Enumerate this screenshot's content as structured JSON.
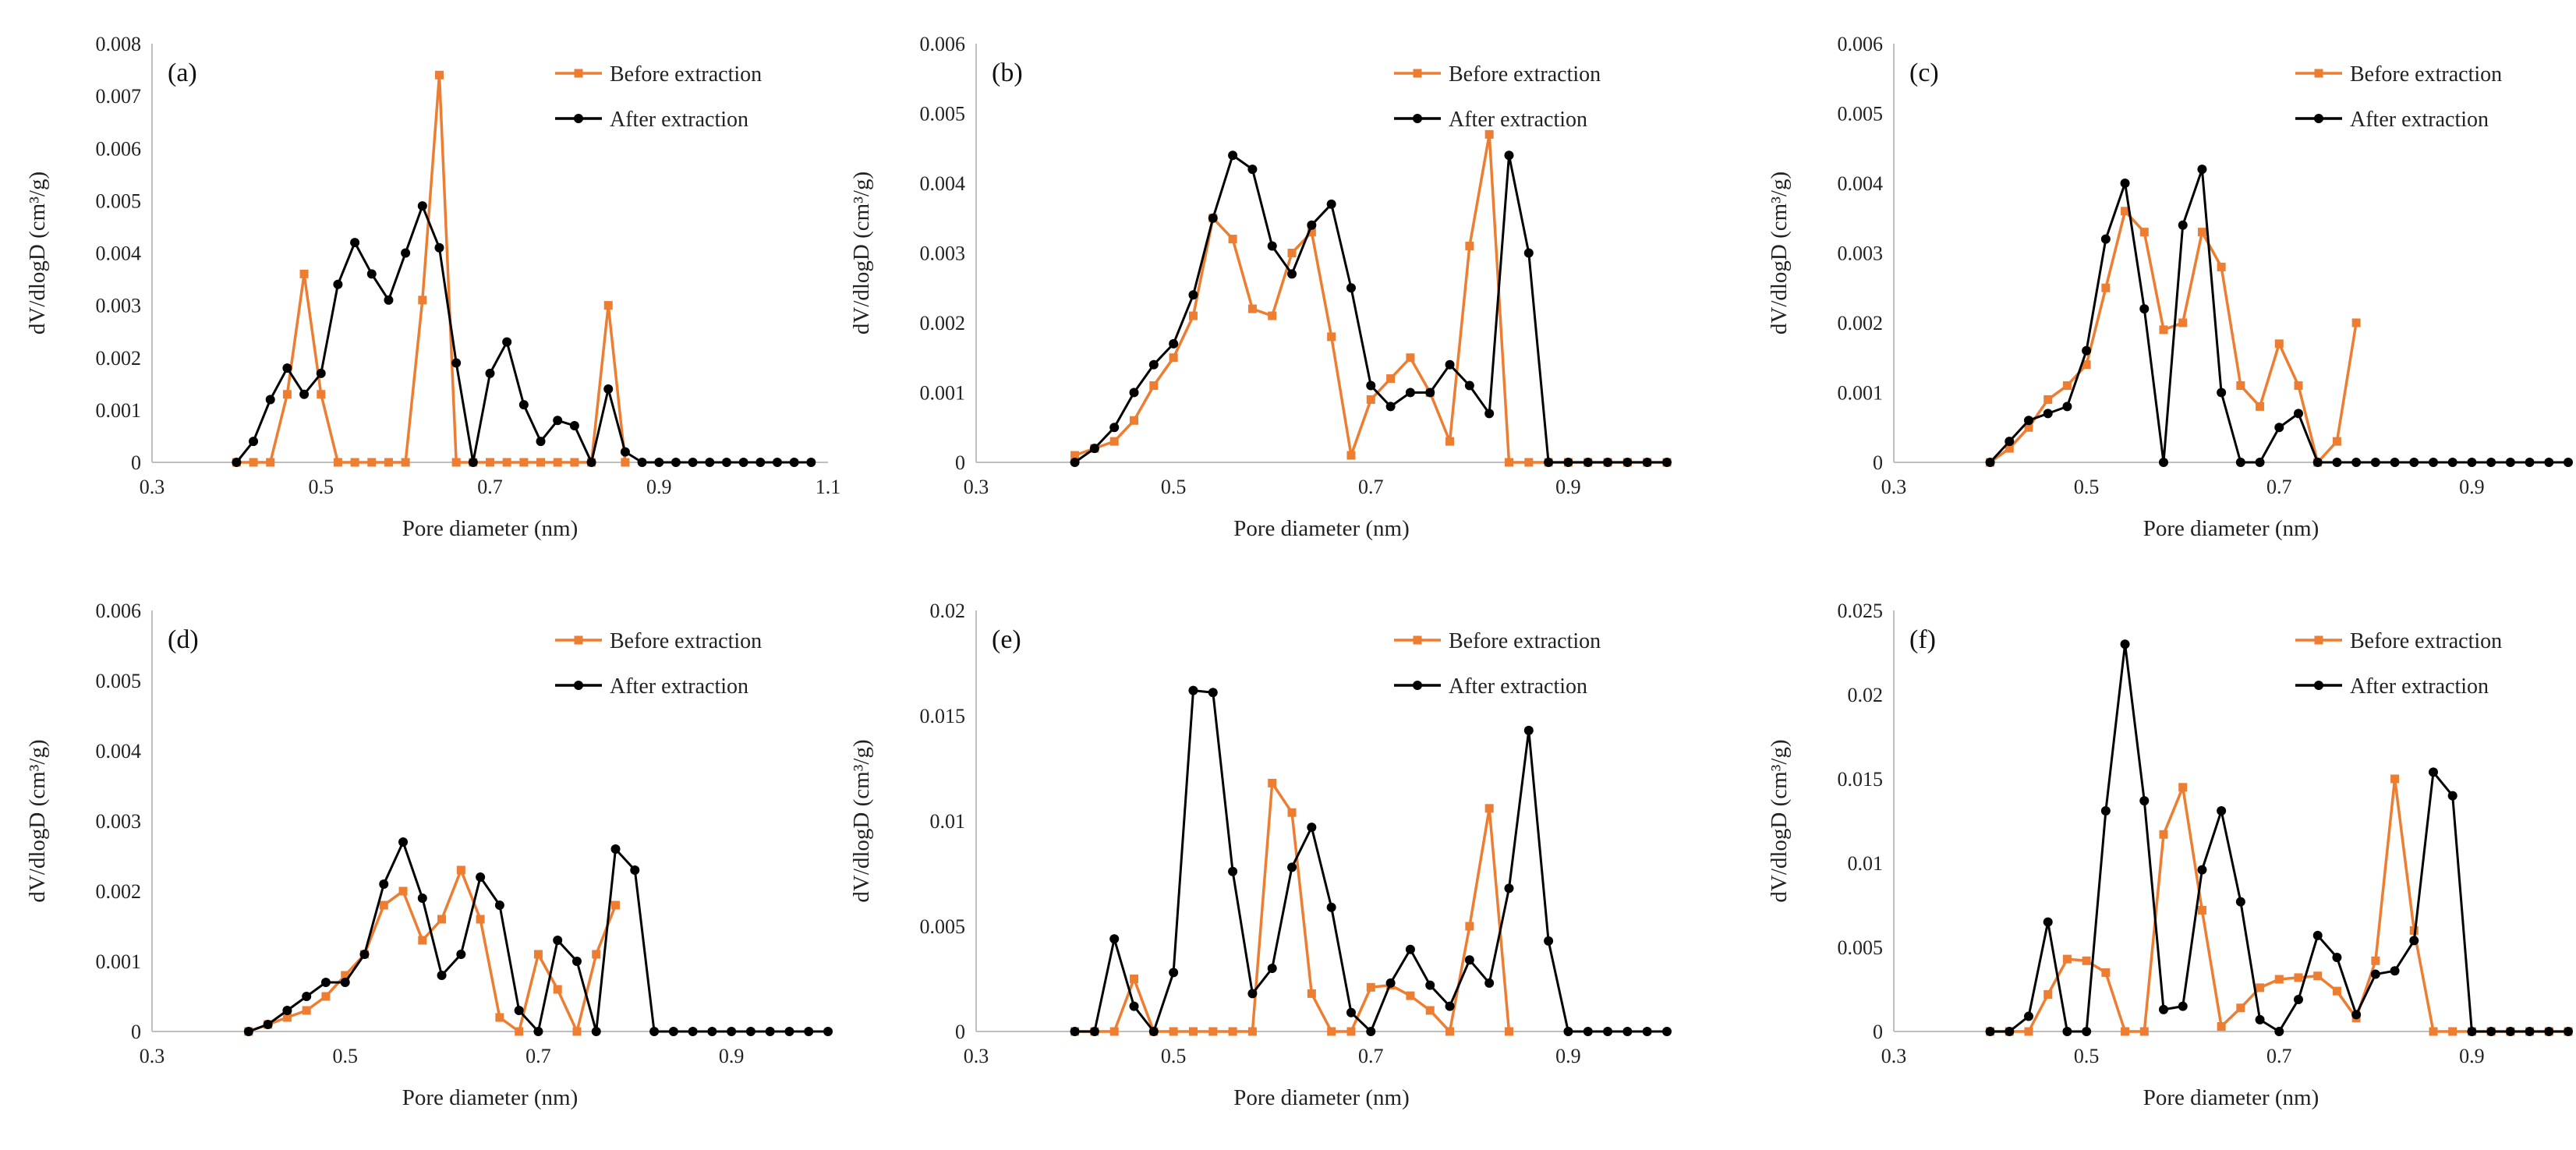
{
  "colors": {
    "before": "#ed7d31",
    "after": "#000000",
    "axis": "#bfbfbf"
  },
  "chart_data": [
    {
      "type": "line",
      "panel_label": "(a)",
      "xlabel": "Pore diameter (nm)",
      "ylabel": "dV/dlogD (cm³/g)",
      "xlim": [
        0.3,
        1.1
      ],
      "ylim": [
        0,
        0.008
      ],
      "xticks": [
        0.3,
        0.5,
        0.7,
        0.9,
        1.1
      ],
      "xtick_labels": [
        "0.3",
        "0.5",
        "0.7",
        "0.9",
        "1.1"
      ],
      "yticks": [
        0,
        0.001,
        0.002,
        0.003,
        0.004,
        0.005,
        0.006,
        0.007,
        0.008
      ],
      "ytick_labels": [
        "0",
        "0.001",
        "0.002",
        "0.003",
        "0.004",
        "0.005",
        "0.006",
        "0.007",
        "0.008"
      ],
      "legend_position": "top-right",
      "series": [
        {
          "name": "Before extraction",
          "x": [
            0.4,
            0.42,
            0.44,
            0.46,
            0.48,
            0.5,
            0.52,
            0.54,
            0.56,
            0.58,
            0.6,
            0.62,
            0.64,
            0.66,
            0.68,
            0.7,
            0.72,
            0.74,
            0.76,
            0.78,
            0.8,
            0.82,
            0.84,
            0.86
          ],
          "y": [
            0,
            0,
            0,
            0.0013,
            0.0036,
            0.0013,
            0,
            0,
            0,
            0,
            0,
            0.0031,
            0.0074,
            0,
            0,
            0,
            0,
            0,
            0,
            0,
            0,
            0,
            0.003,
            0
          ]
        },
        {
          "name": "After extraction",
          "x": [
            0.4,
            0.42,
            0.44,
            0.46,
            0.48,
            0.5,
            0.52,
            0.54,
            0.56,
            0.58,
            0.6,
            0.62,
            0.64,
            0.66,
            0.68,
            0.7,
            0.72,
            0.74,
            0.76,
            0.78,
            0.8,
            0.82,
            0.84,
            0.86,
            0.88,
            0.9,
            0.92,
            0.94,
            0.96,
            0.98,
            1.0,
            1.02,
            1.04,
            1.06,
            1.08
          ],
          "y": [
            0,
            0.0004,
            0.0012,
            0.0018,
            0.0013,
            0.0017,
            0.0034,
            0.0042,
            0.0036,
            0.0031,
            0.004,
            0.0049,
            0.0041,
            0.0019,
            0,
            0.0017,
            0.0023,
            0.0011,
            0.0004,
            0.0008,
            0.0007,
            0,
            0.0014,
            0.0002,
            0,
            0,
            0,
            0,
            0,
            0,
            0,
            0,
            0,
            0,
            0
          ]
        }
      ]
    },
    {
      "type": "line",
      "panel_label": "(b)",
      "xlabel": "Pore diameter (nm)",
      "ylabel": "dV/dlogD (cm³/g)",
      "xlim": [
        0.3,
        1.0
      ],
      "ylim": [
        0,
        0.006
      ],
      "xticks": [
        0.3,
        0.5,
        0.7,
        0.9
      ],
      "xtick_labels": [
        "0.3",
        "0.5",
        "0.7",
        "0.9"
      ],
      "yticks": [
        0,
        0.001,
        0.002,
        0.003,
        0.004,
        0.005,
        0.006
      ],
      "ytick_labels": [
        "0",
        "0.001",
        "0.002",
        "0.003",
        "0.004",
        "0.005",
        "0.006"
      ],
      "legend_position": "top-right",
      "series": [
        {
          "name": "Before extraction",
          "x": [
            0.4,
            0.42,
            0.44,
            0.46,
            0.48,
            0.5,
            0.52,
            0.54,
            0.56,
            0.58,
            0.6,
            0.62,
            0.64,
            0.66,
            0.68,
            0.7,
            0.72,
            0.74,
            0.76,
            0.78,
            0.8,
            0.82,
            0.84,
            0.86,
            0.88,
            0.9,
            0.92,
            0.94,
            0.96,
            0.98,
            1.0
          ],
          "y": [
            0.0001,
            0.0002,
            0.0003,
            0.0006,
            0.0011,
            0.0015,
            0.0021,
            0.0035,
            0.0032,
            0.0022,
            0.0021,
            0.003,
            0.0033,
            0.0018,
            0.0001,
            0.0009,
            0.0012,
            0.0015,
            0.001,
            0.0003,
            0.0031,
            0.0047,
            0,
            0,
            0,
            0,
            0,
            0,
            0,
            0,
            0
          ]
        },
        {
          "name": "After extraction",
          "x": [
            0.4,
            0.42,
            0.44,
            0.46,
            0.48,
            0.5,
            0.52,
            0.54,
            0.56,
            0.58,
            0.6,
            0.62,
            0.64,
            0.66,
            0.68,
            0.7,
            0.72,
            0.74,
            0.76,
            0.78,
            0.8,
            0.82,
            0.84,
            0.86,
            0.88,
            0.9,
            0.92,
            0.94,
            0.96,
            0.98,
            1.0
          ],
          "y": [
            0,
            0.0002,
            0.0005,
            0.001,
            0.0014,
            0.0017,
            0.0024,
            0.0035,
            0.0044,
            0.0042,
            0.0031,
            0.0027,
            0.0034,
            0.0037,
            0.0025,
            0.0011,
            0.0008,
            0.001,
            0.001,
            0.0014,
            0.0011,
            0.0007,
            0.0044,
            0.003,
            0,
            0,
            0,
            0,
            0,
            0,
            0
          ]
        }
      ]
    },
    {
      "type": "line",
      "panel_label": "(c)",
      "xlabel": "Pore diameter (nm)",
      "ylabel": "dV/dlogD (cm³/g)",
      "xlim": [
        0.3,
        1.0
      ],
      "ylim": [
        0,
        0.006
      ],
      "xticks": [
        0.3,
        0.5,
        0.7,
        0.9
      ],
      "xtick_labels": [
        "0.3",
        "0.5",
        "0.7",
        "0.9"
      ],
      "yticks": [
        0,
        0.001,
        0.002,
        0.003,
        0.004,
        0.005,
        0.006
      ],
      "ytick_labels": [
        "0",
        "0.001",
        "0.002",
        "0.003",
        "0.004",
        "0.005",
        "0.006"
      ],
      "legend_position": "top-right",
      "series": [
        {
          "name": "Before extraction",
          "x": [
            0.4,
            0.42,
            0.44,
            0.46,
            0.48,
            0.5,
            0.52,
            0.54,
            0.56,
            0.58,
            0.6,
            0.62,
            0.64,
            0.66,
            0.68,
            0.7,
            0.72,
            0.74,
            0.76,
            0.78
          ],
          "y": [
            0,
            0.0002,
            0.0005,
            0.0009,
            0.0011,
            0.0014,
            0.0025,
            0.0036,
            0.0033,
            0.0019,
            0.002,
            0.0033,
            0.0028,
            0.0011,
            0.0008,
            0.0017,
            0.0011,
            0,
            0.0003,
            0.002
          ]
        },
        {
          "name": "After extraction",
          "x": [
            0.4,
            0.42,
            0.44,
            0.46,
            0.48,
            0.5,
            0.52,
            0.54,
            0.56,
            0.58,
            0.6,
            0.62,
            0.64,
            0.66,
            0.68,
            0.7,
            0.72,
            0.74,
            0.76,
            0.78,
            0.8,
            0.82,
            0.84,
            0.86,
            0.88,
            0.9,
            0.92,
            0.94,
            0.96,
            0.98,
            1.0
          ],
          "y": [
            0,
            0.0003,
            0.0006,
            0.0007,
            0.0008,
            0.0016,
            0.0032,
            0.004,
            0.0022,
            0,
            0.0034,
            0.0042,
            0.001,
            0,
            0,
            0.0005,
            0.0007,
            0,
            0,
            0,
            0,
            0,
            0,
            0,
            0,
            0,
            0,
            0,
            0,
            0,
            0
          ]
        }
      ]
    },
    {
      "type": "line",
      "panel_label": "(d)",
      "xlabel": "Pore diameter (nm)",
      "ylabel": "dV/dlogD (cm³/g)",
      "xlim": [
        0.3,
        1.0
      ],
      "ylim": [
        0,
        0.006
      ],
      "xticks": [
        0.3,
        0.5,
        0.7,
        0.9
      ],
      "xtick_labels": [
        "0.3",
        "0.5",
        "0.7",
        "0.9"
      ],
      "yticks": [
        0,
        0.001,
        0.002,
        0.003,
        0.004,
        0.005,
        0.006
      ],
      "ytick_labels": [
        "0",
        "0.001",
        "0.002",
        "0.003",
        "0.004",
        "0.005",
        "0.006"
      ],
      "legend_position": "top-right",
      "series": [
        {
          "name": "Before extraction",
          "x": [
            0.4,
            0.42,
            0.44,
            0.46,
            0.48,
            0.5,
            0.52,
            0.54,
            0.56,
            0.58,
            0.6,
            0.62,
            0.64,
            0.66,
            0.68,
            0.7,
            0.72,
            0.74,
            0.76,
            0.78
          ],
          "y": [
            0,
            0.0001,
            0.0002,
            0.0003,
            0.0005,
            0.0008,
            0.0011,
            0.0018,
            0.002,
            0.0013,
            0.0016,
            0.0023,
            0.0016,
            0.0002,
            0,
            0.0011,
            0.0006,
            0,
            0.0011,
            0.0018
          ]
        },
        {
          "name": "After extraction",
          "x": [
            0.4,
            0.42,
            0.44,
            0.46,
            0.48,
            0.5,
            0.52,
            0.54,
            0.56,
            0.58,
            0.6,
            0.62,
            0.64,
            0.66,
            0.68,
            0.7,
            0.72,
            0.74,
            0.76,
            0.78,
            0.8,
            0.82,
            0.84,
            0.86,
            0.88,
            0.9,
            0.92,
            0.94,
            0.96,
            0.98,
            1.0
          ],
          "y": [
            0,
            0.0001,
            0.0003,
            0.0005,
            0.0007,
            0.0007,
            0.0011,
            0.0021,
            0.0027,
            0.0019,
            0.0008,
            0.0011,
            0.0022,
            0.0018,
            0.0003,
            0,
            0.0013,
            0.001,
            0,
            0.0026,
            0.0023,
            0,
            0,
            0,
            0,
            0,
            0,
            0,
            0,
            0,
            0
          ]
        }
      ]
    },
    {
      "type": "line",
      "panel_label": "(e)",
      "xlabel": "Pore diameter (nm)",
      "ylabel": "dV/dlogD (cm³/g)",
      "xlim": [
        0.3,
        1.0
      ],
      "ylim": [
        0,
        0.02
      ],
      "xticks": [
        0.3,
        0.5,
        0.7,
        0.9
      ],
      "xtick_labels": [
        "0.3",
        "0.5",
        "0.7",
        "0.9"
      ],
      "yticks": [
        0,
        0.005,
        0.01,
        0.015,
        0.02
      ],
      "ytick_labels": [
        "0",
        "0.005",
        "0.01",
        "0.015",
        "0.02"
      ],
      "legend_position": "top-right",
      "series": [
        {
          "name": "Before extraction",
          "x": [
            0.4,
            0.42,
            0.44,
            0.46,
            0.48,
            0.5,
            0.52,
            0.54,
            0.56,
            0.58,
            0.6,
            0.62,
            0.64,
            0.66,
            0.68,
            0.7,
            0.72,
            0.74,
            0.76,
            0.78,
            0.8,
            0.82,
            0.84
          ],
          "y": [
            0,
            0,
            0,
            0.0025,
            0,
            0,
            0,
            0,
            0,
            0,
            0.0118,
            0.0104,
            0.0018,
            0,
            0,
            0.0021,
            0.0022,
            0.0017,
            0.001,
            0,
            0.005,
            0.0106,
            0
          ]
        },
        {
          "name": "After extraction",
          "x": [
            0.4,
            0.42,
            0.44,
            0.46,
            0.48,
            0.5,
            0.52,
            0.54,
            0.56,
            0.58,
            0.6,
            0.62,
            0.64,
            0.66,
            0.68,
            0.7,
            0.72,
            0.74,
            0.76,
            0.78,
            0.8,
            0.82,
            0.84,
            0.86,
            0.88,
            0.9,
            0.92,
            0.94,
            0.96,
            0.98,
            1.0
          ],
          "y": [
            0,
            0,
            0.0044,
            0.0012,
            0,
            0.0028,
            0.0162,
            0.0161,
            0.0076,
            0.0018,
            0.003,
            0.0078,
            0.0097,
            0.0059,
            0.0009,
            0,
            0.0023,
            0.0039,
            0.0022,
            0.0012,
            0.0034,
            0.0023,
            0.0068,
            0.0143,
            0.0043,
            0,
            0,
            0,
            0,
            0,
            0
          ]
        }
      ]
    },
    {
      "type": "line",
      "panel_label": "(f)",
      "xlabel": "Pore diameter (nm)",
      "ylabel": "dV/dlogD (cm³/g)",
      "xlim": [
        0.3,
        1.0
      ],
      "ylim": [
        0,
        0.025
      ],
      "xticks": [
        0.3,
        0.5,
        0.7,
        0.9
      ],
      "xtick_labels": [
        "0.3",
        "0.5",
        "0.7",
        "0.9"
      ],
      "yticks": [
        0,
        0.005,
        0.01,
        0.015,
        0.02,
        0.025
      ],
      "ytick_labels": [
        "0",
        "0.005",
        "0.01",
        "0.015",
        "0.02",
        "0.025"
      ],
      "legend_position": "top-right",
      "series": [
        {
          "name": "Before extraction",
          "x": [
            0.4,
            0.42,
            0.44,
            0.46,
            0.48,
            0.5,
            0.52,
            0.54,
            0.56,
            0.58,
            0.6,
            0.62,
            0.64,
            0.66,
            0.68,
            0.7,
            0.72,
            0.74,
            0.76,
            0.78,
            0.8,
            0.82,
            0.84,
            0.86,
            0.88,
            0.9,
            0.92,
            0.94,
            0.96,
            0.98,
            1.0
          ],
          "y": [
            0,
            0,
            0,
            0.0022,
            0.0043,
            0.0042,
            0.0035,
            0,
            0,
            0.0117,
            0.0145,
            0.0072,
            0.0003,
            0.0014,
            0.0026,
            0.0031,
            0.0032,
            0.0033,
            0.0024,
            0.0008,
            0.0042,
            0.015,
            0.006,
            0,
            0,
            0,
            0,
            0,
            0,
            0,
            0
          ]
        },
        {
          "name": "After extraction",
          "x": [
            0.4,
            0.42,
            0.44,
            0.46,
            0.48,
            0.5,
            0.52,
            0.54,
            0.56,
            0.58,
            0.6,
            0.62,
            0.64,
            0.66,
            0.68,
            0.7,
            0.72,
            0.74,
            0.76,
            0.78,
            0.8,
            0.82,
            0.84,
            0.86,
            0.88,
            0.9,
            0.92,
            0.94,
            0.96,
            0.98,
            1.0
          ],
          "y": [
            0,
            0,
            0.0009,
            0.0065,
            0,
            0,
            0.0131,
            0.023,
            0.0137,
            0.0013,
            0.0015,
            0.0096,
            0.0131,
            0.0077,
            0.0007,
            0,
            0.0019,
            0.0057,
            0.0044,
            0.001,
            0.0034,
            0.0036,
            0.0054,
            0.0154,
            0.014,
            0,
            0,
            0,
            0,
            0,
            0
          ]
        }
      ]
    }
  ]
}
